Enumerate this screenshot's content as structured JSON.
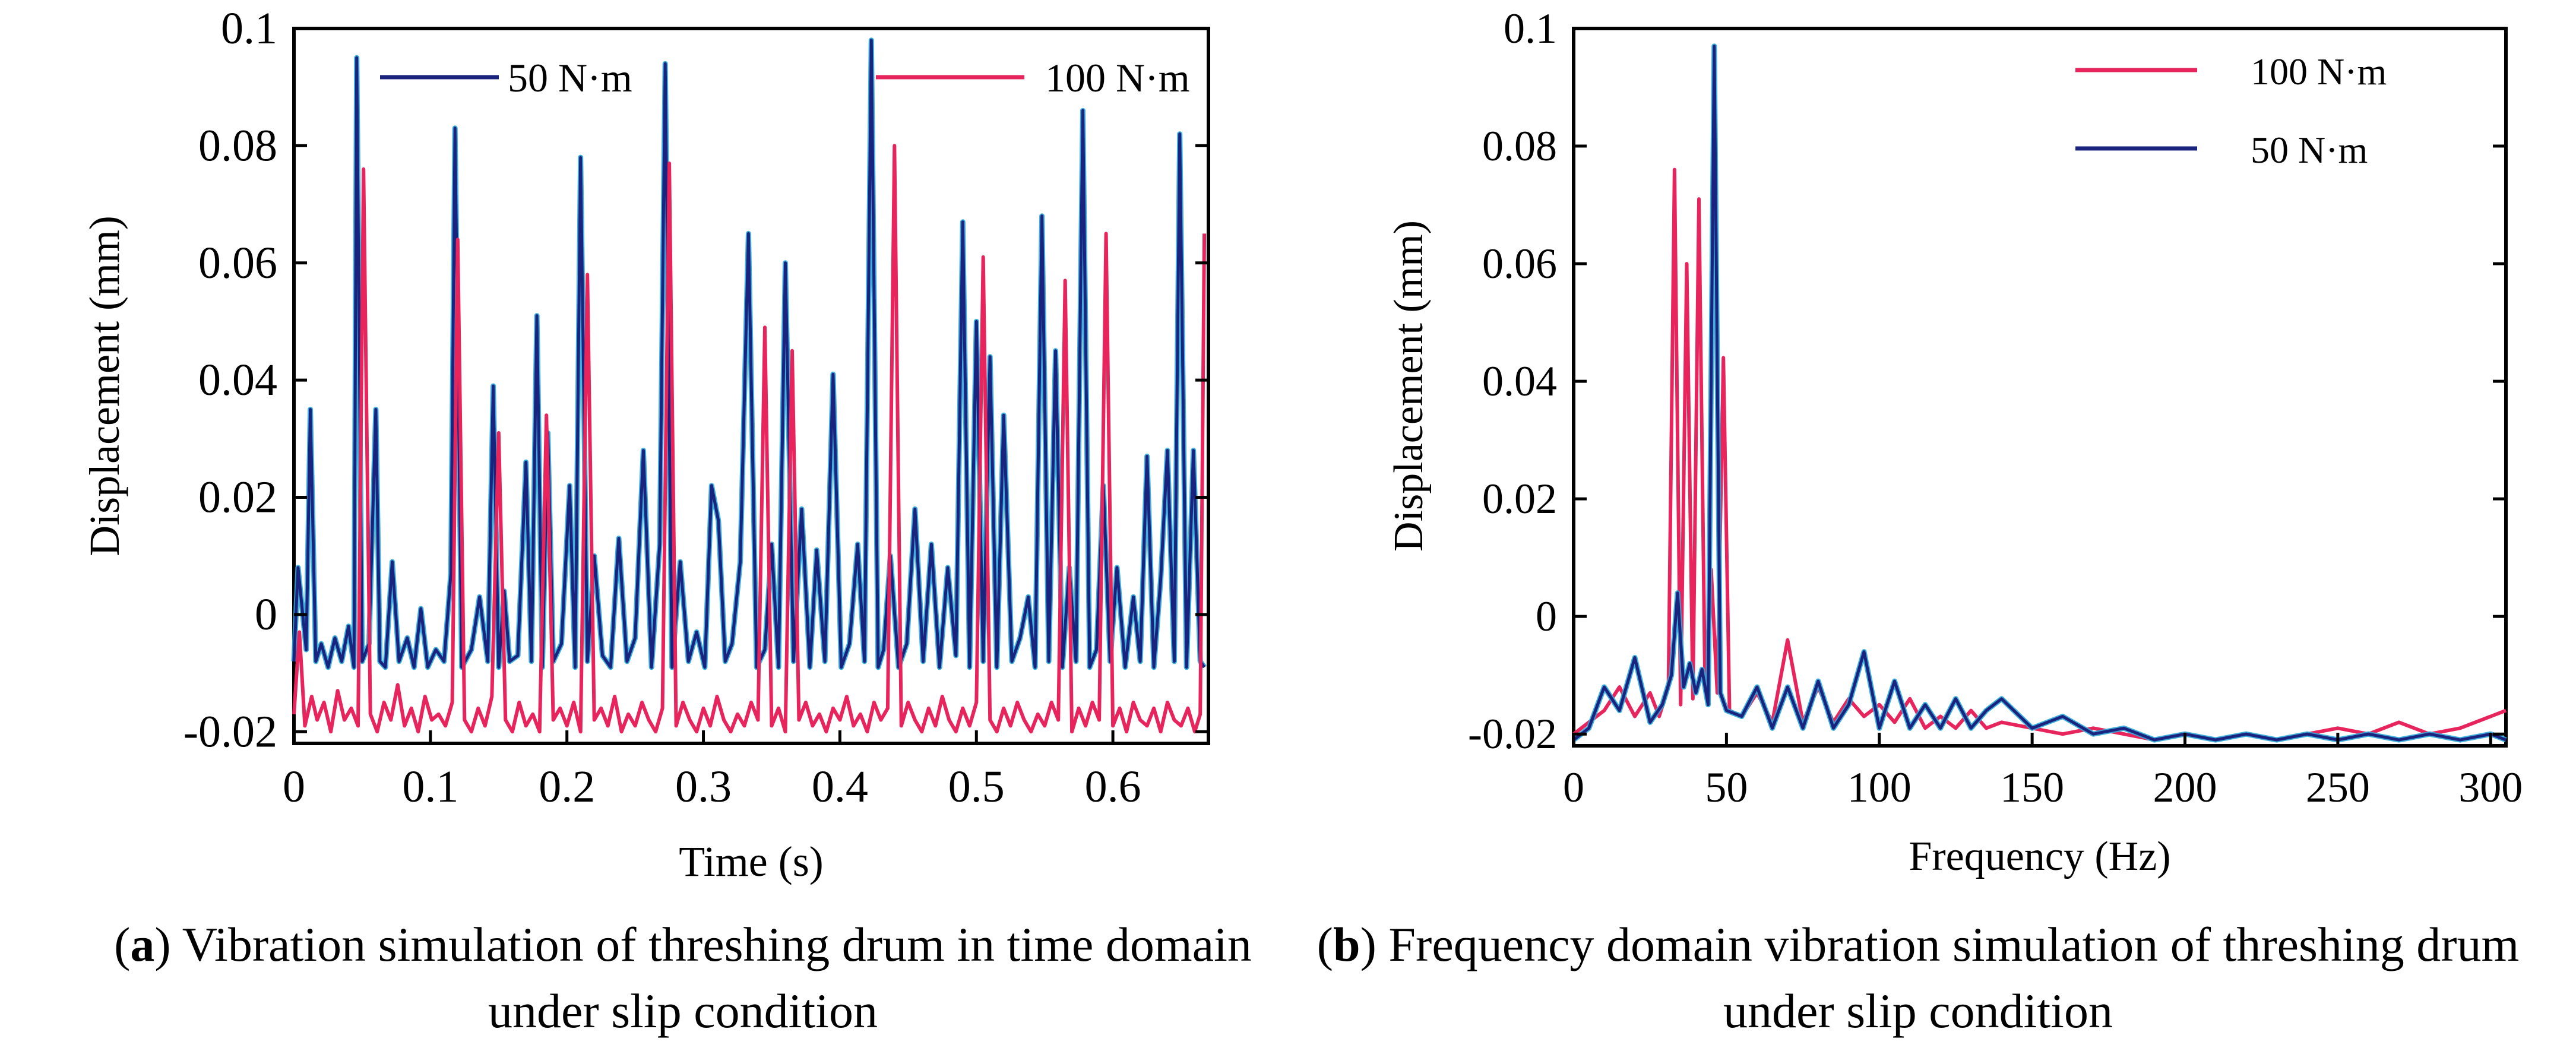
{
  "chart_data": [
    {
      "type": "line",
      "panel": "a",
      "caption_letter": "a",
      "caption_text": "Vibration simulation of threshing drum in time domain under slip condition",
      "xlabel": "Time (s)",
      "ylabel": "Displacement  (mm)",
      "xlim": [
        0,
        0.67
      ],
      "ylim": [
        -0.022,
        0.1
      ],
      "xticks": [
        "0",
        "0.1",
        "0.2",
        "0.3",
        "0.4",
        "0.5",
        "0.6"
      ],
      "xtick_values": [
        0,
        0.1,
        0.2,
        0.3,
        0.4,
        0.5,
        0.6
      ],
      "yticks": [
        "0.1",
        "0.08",
        "0.06",
        "0.04",
        "0.02",
        "0",
        "-0.02"
      ],
      "ytick_values": [
        0.1,
        0.08,
        0.06,
        0.04,
        0.02,
        0,
        -0.02
      ],
      "grid": false,
      "legend_placement": "top",
      "series": [
        {
          "name": "50 N·m",
          "color": "#1a237e",
          "accent_color": "#2aa7d9",
          "x": [
            0,
            0.003,
            0.009,
            0.012,
            0.016,
            0.02,
            0.025,
            0.03,
            0.035,
            0.04,
            0.044,
            0.046,
            0.05,
            0.055,
            0.06,
            0.063,
            0.067,
            0.072,
            0.077,
            0.083,
            0.088,
            0.093,
            0.098,
            0.104,
            0.11,
            0.115,
            0.118,
            0.123,
            0.13,
            0.136,
            0.142,
            0.146,
            0.15,
            0.154,
            0.158,
            0.164,
            0.17,
            0.174,
            0.178,
            0.182,
            0.186,
            0.19,
            0.196,
            0.202,
            0.206,
            0.21,
            0.215,
            0.22,
            0.226,
            0.232,
            0.238,
            0.244,
            0.25,
            0.256,
            0.262,
            0.268,
            0.272,
            0.277,
            0.283,
            0.289,
            0.295,
            0.301,
            0.306,
            0.311,
            0.316,
            0.321,
            0.327,
            0.333,
            0.339,
            0.345,
            0.35,
            0.355,
            0.36,
            0.366,
            0.372,
            0.378,
            0.383,
            0.389,
            0.395,
            0.401,
            0.407,
            0.413,
            0.418,
            0.423,
            0.428,
            0.432,
            0.437,
            0.443,
            0.449,
            0.455,
            0.461,
            0.467,
            0.473,
            0.479,
            0.485,
            0.49,
            0.495,
            0.5,
            0.505,
            0.51,
            0.515,
            0.52,
            0.526,
            0.532,
            0.538,
            0.543,
            0.548,
            0.553,
            0.558,
            0.563,
            0.568,
            0.573,
            0.578,
            0.583,
            0.588,
            0.593,
            0.598,
            0.603,
            0.609,
            0.615,
            0.62,
            0.625,
            0.63,
            0.635,
            0.64,
            0.645,
            0.649,
            0.654,
            0.659,
            0.664,
            0.667
          ],
          "y": [
            -0.008,
            0.008,
            -0.006,
            0.035,
            -0.008,
            -0.005,
            -0.009,
            -0.004,
            -0.008,
            -0.002,
            -0.009,
            0.095,
            -0.008,
            -0.005,
            0.035,
            -0.008,
            -0.009,
            0.009,
            -0.008,
            -0.004,
            -0.009,
            0.001,
            -0.009,
            -0.006,
            -0.008,
            0.007,
            0.083,
            -0.009,
            -0.006,
            0.003,
            -0.008,
            0.039,
            -0.009,
            0.004,
            -0.008,
            -0.007,
            0.026,
            -0.008,
            0.051,
            -0.009,
            0.031,
            -0.008,
            -0.005,
            0.022,
            -0.009,
            0.078,
            -0.008,
            0.01,
            -0.007,
            -0.009,
            0.013,
            -0.008,
            -0.004,
            0.028,
            -0.009,
            0.012,
            0.094,
            -0.009,
            0.009,
            -0.008,
            -0.003,
            -0.009,
            0.022,
            0.016,
            -0.008,
            -0.005,
            0.009,
            0.065,
            -0.009,
            -0.006,
            0.012,
            -0.009,
            0.06,
            -0.008,
            0.018,
            -0.009,
            0.011,
            -0.008,
            0.041,
            -0.009,
            -0.005,
            0.012,
            -0.008,
            0.098,
            -0.009,
            -0.006,
            0.01,
            -0.009,
            -0.005,
            0.018,
            -0.008,
            0.012,
            -0.009,
            0.008,
            -0.007,
            0.067,
            -0.009,
            0.05,
            -0.008,
            0.044,
            -0.009,
            0.034,
            -0.008,
            -0.004,
            0.003,
            -0.009,
            0.068,
            -0.008,
            0.045,
            -0.009,
            0.008,
            -0.008,
            0.086,
            -0.009,
            -0.006,
            0.022,
            -0.008,
            0.008,
            -0.009,
            0.003,
            -0.008,
            0.027,
            -0.009,
            0.006,
            0.028,
            -0.008,
            0.082,
            -0.009,
            0.028,
            -0.008,
            -0.009
          ]
        },
        {
          "name": "100 N·m",
          "color": "#e8245c",
          "x": [
            0,
            0.004,
            0.008,
            0.013,
            0.017,
            0.022,
            0.027,
            0.032,
            0.037,
            0.042,
            0.047,
            0.051,
            0.056,
            0.061,
            0.066,
            0.071,
            0.076,
            0.081,
            0.086,
            0.091,
            0.096,
            0.101,
            0.106,
            0.111,
            0.116,
            0.12,
            0.125,
            0.13,
            0.135,
            0.14,
            0.145,
            0.15,
            0.155,
            0.16,
            0.165,
            0.17,
            0.175,
            0.18,
            0.185,
            0.19,
            0.195,
            0.2,
            0.205,
            0.21,
            0.215,
            0.22,
            0.225,
            0.23,
            0.235,
            0.24,
            0.245,
            0.25,
            0.255,
            0.26,
            0.265,
            0.27,
            0.275,
            0.28,
            0.285,
            0.29,
            0.295,
            0.3,
            0.305,
            0.31,
            0.315,
            0.32,
            0.325,
            0.33,
            0.335,
            0.34,
            0.345,
            0.35,
            0.355,
            0.36,
            0.365,
            0.37,
            0.375,
            0.38,
            0.385,
            0.39,
            0.395,
            0.4,
            0.405,
            0.41,
            0.415,
            0.42,
            0.425,
            0.43,
            0.435,
            0.44,
            0.445,
            0.45,
            0.455,
            0.46,
            0.465,
            0.47,
            0.475,
            0.48,
            0.485,
            0.49,
            0.495,
            0.5,
            0.505,
            0.51,
            0.515,
            0.52,
            0.525,
            0.53,
            0.535,
            0.54,
            0.545,
            0.55,
            0.555,
            0.56,
            0.565,
            0.57,
            0.575,
            0.58,
            0.585,
            0.59,
            0.595,
            0.6,
            0.605,
            0.61,
            0.615,
            0.62,
            0.625,
            0.63,
            0.635,
            0.64,
            0.645,
            0.65,
            0.655,
            0.66,
            0.664,
            0.667
          ],
          "y": [
            -0.017,
            -0.003,
            -0.019,
            -0.014,
            -0.018,
            -0.015,
            -0.02,
            -0.013,
            -0.018,
            -0.016,
            -0.019,
            0.076,
            -0.017,
            -0.02,
            -0.015,
            -0.018,
            -0.012,
            -0.019,
            -0.016,
            -0.02,
            -0.014,
            -0.018,
            -0.017,
            -0.019,
            -0.015,
            0.064,
            -0.018,
            -0.02,
            -0.016,
            -0.019,
            -0.014,
            0.031,
            -0.018,
            -0.02,
            -0.015,
            -0.019,
            -0.017,
            -0.02,
            0.034,
            -0.018,
            -0.016,
            -0.019,
            -0.015,
            -0.02,
            0.058,
            -0.018,
            -0.016,
            -0.019,
            -0.014,
            -0.02,
            -0.017,
            -0.019,
            -0.015,
            -0.018,
            -0.02,
            -0.016,
            0.077,
            -0.019,
            -0.015,
            -0.018,
            -0.02,
            -0.016,
            -0.019,
            -0.014,
            -0.018,
            -0.02,
            -0.017,
            -0.019,
            -0.015,
            -0.018,
            0.049,
            -0.019,
            -0.016,
            -0.02,
            0.045,
            -0.018,
            -0.015,
            -0.019,
            -0.017,
            -0.02,
            -0.016,
            -0.018,
            -0.014,
            -0.019,
            -0.017,
            -0.02,
            -0.015,
            -0.018,
            -0.016,
            0.08,
            -0.019,
            -0.015,
            -0.018,
            -0.02,
            -0.016,
            -0.019,
            -0.014,
            -0.018,
            -0.02,
            -0.016,
            -0.019,
            -0.015,
            0.061,
            -0.018,
            -0.02,
            -0.016,
            -0.019,
            -0.015,
            -0.018,
            -0.02,
            -0.017,
            -0.019,
            -0.015,
            -0.018,
            0.057,
            -0.02,
            -0.016,
            -0.019,
            -0.015,
            -0.018,
            0.065,
            -0.019,
            -0.016,
            -0.02,
            -0.015,
            -0.018,
            -0.019,
            -0.016,
            -0.02,
            -0.015,
            -0.018,
            -0.019,
            -0.016,
            -0.02,
            -0.017,
            0.065
          ]
        }
      ]
    },
    {
      "type": "line",
      "panel": "b",
      "caption_letter": "b",
      "caption_text": "Frequency domain vibration simulation of threshing drum under slip condition",
      "xlabel": "Frequency (Hz)",
      "ylabel": "Displacement (mm)",
      "xlim": [
        0,
        305
      ],
      "ylim": [
        -0.022,
        0.1
      ],
      "xticks": [
        "0",
        "50",
        "100",
        "150",
        "200",
        "250",
        "300"
      ],
      "xtick_values": [
        0,
        50,
        100,
        150,
        200,
        250,
        300
      ],
      "yticks": [
        "0.1",
        "0.08",
        "0.06",
        "0.04",
        "0.02",
        "0",
        "-0.02"
      ],
      "ytick_values": [
        0.1,
        0.08,
        0.06,
        0.04,
        0.02,
        0,
        -0.02
      ],
      "grid": false,
      "legend_placement": "top-right",
      "series": [
        {
          "name": "100 N·m",
          "color": "#e8245c",
          "x": [
            0,
            5,
            10,
            15,
            20,
            25,
            28,
            31,
            33,
            35,
            37,
            39,
            41,
            43,
            45,
            47,
            49,
            51,
            55,
            60,
            65,
            70,
            75,
            80,
            85,
            90,
            95,
            100,
            105,
            110,
            115,
            120,
            125,
            130,
            135,
            140,
            150,
            160,
            170,
            180,
            190,
            200,
            210,
            220,
            230,
            240,
            250,
            260,
            270,
            280,
            290,
            300,
            305
          ],
          "y": [
            -0.02,
            -0.018,
            -0.016,
            -0.012,
            -0.017,
            -0.013,
            -0.017,
            -0.012,
            0.076,
            -0.015,
            0.06,
            -0.014,
            0.071,
            -0.012,
            0.008,
            -0.013,
            0.044,
            -0.016,
            -0.017,
            -0.013,
            -0.018,
            -0.004,
            -0.018,
            -0.012,
            -0.018,
            -0.014,
            -0.017,
            -0.015,
            -0.018,
            -0.014,
            -0.019,
            -0.017,
            -0.019,
            -0.016,
            -0.019,
            -0.018,
            -0.019,
            -0.02,
            -0.019,
            -0.02,
            -0.021,
            -0.02,
            -0.021,
            -0.02,
            -0.021,
            -0.02,
            -0.019,
            -0.02,
            -0.018,
            -0.02,
            -0.019,
            -0.017,
            -0.016
          ]
        },
        {
          "name": "50 N·m",
          "color": "#1a237e",
          "accent_color": "#2aa7d9",
          "x": [
            0,
            5,
            10,
            15,
            20,
            25,
            29,
            32,
            34,
            36,
            38,
            40,
            42,
            44,
            46,
            48,
            50,
            55,
            60,
            65,
            70,
            75,
            80,
            85,
            90,
            95,
            100,
            105,
            110,
            115,
            120,
            125,
            130,
            135,
            140,
            150,
            160,
            170,
            180,
            190,
            200,
            210,
            220,
            230,
            240,
            250,
            260,
            270,
            280,
            290,
            300,
            305
          ],
          "y": [
            -0.021,
            -0.019,
            -0.012,
            -0.016,
            -0.007,
            -0.018,
            -0.015,
            -0.01,
            0.004,
            -0.012,
            -0.008,
            -0.013,
            -0.009,
            -0.015,
            0.097,
            -0.013,
            -0.016,
            -0.017,
            -0.012,
            -0.019,
            -0.012,
            -0.019,
            -0.011,
            -0.019,
            -0.015,
            -0.006,
            -0.019,
            -0.011,
            -0.019,
            -0.015,
            -0.019,
            -0.014,
            -0.019,
            -0.016,
            -0.014,
            -0.019,
            -0.017,
            -0.02,
            -0.019,
            -0.021,
            -0.02,
            -0.021,
            -0.02,
            -0.021,
            -0.02,
            -0.021,
            -0.02,
            -0.021,
            -0.02,
            -0.021,
            -0.02,
            -0.021
          ]
        }
      ]
    }
  ]
}
